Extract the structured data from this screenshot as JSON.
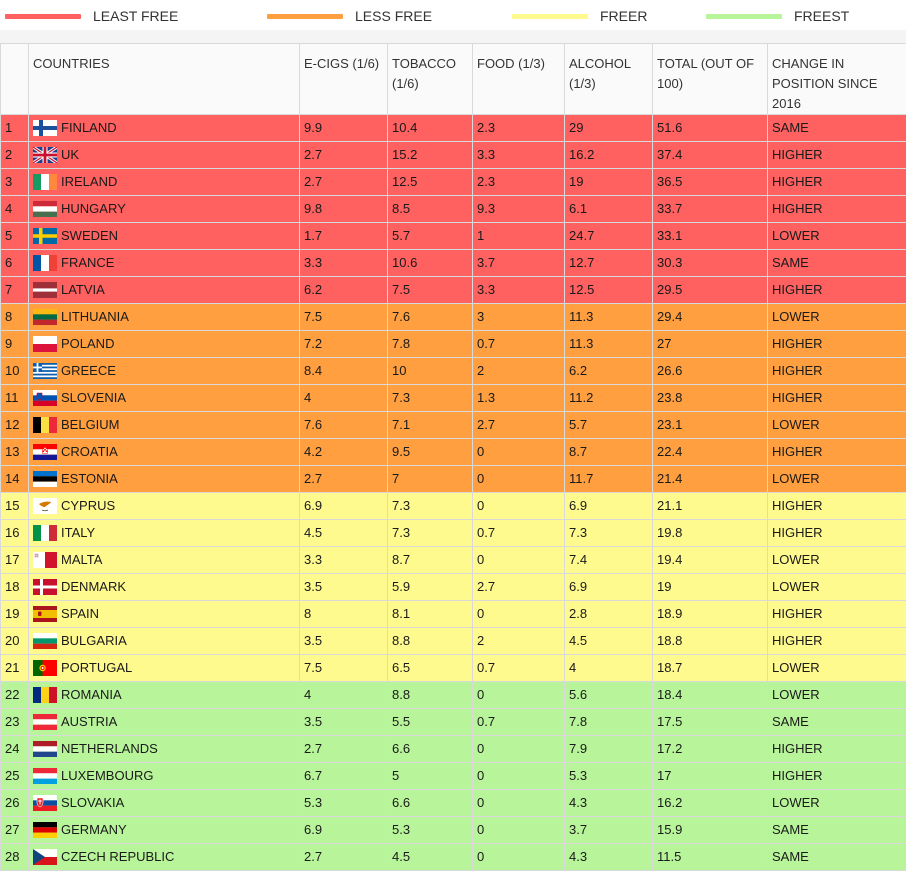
{
  "legend": [
    {
      "label": "LEAST FREE",
      "color": "#ff6060"
    },
    {
      "label": "LESS FREE",
      "color": "#ff9f3f"
    },
    {
      "label": "FREER",
      "color": "#fffa8e"
    },
    {
      "label": "FREEST",
      "color": "#b8f59a"
    }
  ],
  "chart_data": {
    "type": "table",
    "columns": [
      "",
      "COUNTRIES",
      "E-CIGS (1/6)",
      "TOBACCO (1/6)",
      "FOOD (1/3)",
      "ALCOHOL (1/3)",
      "TOTAL (OUT OF 100)",
      "CHANGE IN POSITION SINCE 2016"
    ],
    "rows": [
      {
        "rank": "1",
        "country": "FINLAND",
        "flag": "finland-flag-icon",
        "ecigs": "9.9",
        "tobacco": "10.4",
        "food": "2.3",
        "alcohol": "29",
        "total": "51.6",
        "change": "SAME",
        "group": 0
      },
      {
        "rank": "2",
        "country": "UK",
        "flag": "uk-flag-icon",
        "ecigs": "2.7",
        "tobacco": "15.2",
        "food": "3.3",
        "alcohol": "16.2",
        "total": "37.4",
        "change": "HIGHER",
        "group": 0
      },
      {
        "rank": "3",
        "country": "IRELAND",
        "flag": "ireland-flag-icon",
        "ecigs": "2.7",
        "tobacco": "12.5",
        "food": "2.3",
        "alcohol": "19",
        "total": "36.5",
        "change": "HIGHER",
        "group": 0
      },
      {
        "rank": "4",
        "country": "HUNGARY",
        "flag": "hungary-flag-icon",
        "ecigs": "9.8",
        "tobacco": "8.5",
        "food": "9.3",
        "alcohol": "6.1",
        "total": "33.7",
        "change": "HIGHER",
        "group": 0
      },
      {
        "rank": "5",
        "country": "SWEDEN",
        "flag": "sweden-flag-icon",
        "ecigs": "1.7",
        "tobacco": "5.7",
        "food": "1",
        "alcohol": "24.7",
        "total": "33.1",
        "change": "LOWER",
        "group": 0
      },
      {
        "rank": "6",
        "country": "FRANCE",
        "flag": "france-flag-icon",
        "ecigs": "3.3",
        "tobacco": "10.6",
        "food": "3.7",
        "alcohol": "12.7",
        "total": "30.3",
        "change": "SAME",
        "group": 0
      },
      {
        "rank": "7",
        "country": "LATVIA",
        "flag": "latvia-flag-icon",
        "ecigs": "6.2",
        "tobacco": "7.5",
        "food": "3.3",
        "alcohol": "12.5",
        "total": "29.5",
        "change": "HIGHER",
        "group": 0
      },
      {
        "rank": "8",
        "country": "LITHUANIA",
        "flag": "lithuania-flag-icon",
        "ecigs": "7.5",
        "tobacco": "7.6",
        "food": "3",
        "alcohol": "11.3",
        "total": "29.4",
        "change": "LOWER",
        "group": 1
      },
      {
        "rank": "9",
        "country": "POLAND",
        "flag": "poland-flag-icon",
        "ecigs": "7.2",
        "tobacco": "7.8",
        "food": "0.7",
        "alcohol": "11.3",
        "total": "27",
        "change": "HIGHER",
        "group": 1
      },
      {
        "rank": "10",
        "country": "GREECE",
        "flag": "greece-flag-icon",
        "ecigs": "8.4",
        "tobacco": "10",
        "food": "2",
        "alcohol": "6.2",
        "total": "26.6",
        "change": "HIGHER",
        "group": 1
      },
      {
        "rank": "11",
        "country": "SLOVENIA",
        "flag": "slovenia-flag-icon",
        "ecigs": "4",
        "tobacco": "7.3",
        "food": "1.3",
        "alcohol": "11.2",
        "total": "23.8",
        "change": "HIGHER",
        "group": 1
      },
      {
        "rank": "12",
        "country": "BELGIUM",
        "flag": "belgium-flag-icon",
        "ecigs": "7.6",
        "tobacco": "7.1",
        "food": "2.7",
        "alcohol": "5.7",
        "total": "23.1",
        "change": "LOWER",
        "group": 1
      },
      {
        "rank": "13",
        "country": "CROATIA",
        "flag": "croatia-flag-icon",
        "ecigs": "4.2",
        "tobacco": "9.5",
        "food": "0",
        "alcohol": "8.7",
        "total": "22.4",
        "change": "HIGHER",
        "group": 1
      },
      {
        "rank": "14",
        "country": "ESTONIA",
        "flag": "estonia-flag-icon",
        "ecigs": "2.7",
        "tobacco": "7",
        "food": "0",
        "alcohol": "11.7",
        "total": "21.4",
        "change": "LOWER",
        "group": 1
      },
      {
        "rank": "15",
        "country": "CYPRUS",
        "flag": "cyprus-flag-icon",
        "ecigs": "6.9",
        "tobacco": "7.3",
        "food": "0",
        "alcohol": "6.9",
        "total": "21.1",
        "change": "HIGHER",
        "group": 2
      },
      {
        "rank": "16",
        "country": "ITALY",
        "flag": "italy-flag-icon",
        "ecigs": "4.5",
        "tobacco": "7.3",
        "food": "0.7",
        "alcohol": "7.3",
        "total": "19.8",
        "change": "HIGHER",
        "group": 2
      },
      {
        "rank": "17",
        "country": "MALTA",
        "flag": "malta-flag-icon",
        "ecigs": "3.3",
        "tobacco": "8.7",
        "food": "0",
        "alcohol": "7.4",
        "total": "19.4",
        "change": "LOWER",
        "group": 2
      },
      {
        "rank": "18",
        "country": "DENMARK",
        "flag": "denmark-flag-icon",
        "ecigs": "3.5",
        "tobacco": "5.9",
        "food": "2.7",
        "alcohol": "6.9",
        "total": "19",
        "change": "LOWER",
        "group": 2
      },
      {
        "rank": "19",
        "country": "SPAIN",
        "flag": "spain-flag-icon",
        "ecigs": "8",
        "tobacco": "8.1",
        "food": "0",
        "alcohol": "2.8",
        "total": "18.9",
        "change": "HIGHER",
        "group": 2
      },
      {
        "rank": "20",
        "country": "BULGARIA",
        "flag": "bulgaria-flag-icon",
        "ecigs": "3.5",
        "tobacco": "8.8",
        "food": "2",
        "alcohol": "4.5",
        "total": "18.8",
        "change": "HIGHER",
        "group": 2
      },
      {
        "rank": "21",
        "country": "PORTUGAL",
        "flag": "portugal-flag-icon",
        "ecigs": "7.5",
        "tobacco": "6.5",
        "food": "0.7",
        "alcohol": "4",
        "total": "18.7",
        "change": "LOWER",
        "group": 2
      },
      {
        "rank": "22",
        "country": "ROMANIA",
        "flag": "romania-flag-icon",
        "ecigs": "4",
        "tobacco": "8.8",
        "food": "0",
        "alcohol": "5.6",
        "total": "18.4",
        "change": "LOWER",
        "group": 3
      },
      {
        "rank": "23",
        "country": "AUSTRIA",
        "flag": "austria-flag-icon",
        "ecigs": "3.5",
        "tobacco": "5.5",
        "food": "0.7",
        "alcohol": "7.8",
        "total": "17.5",
        "change": "SAME",
        "group": 3
      },
      {
        "rank": "24",
        "country": "NETHERLANDS",
        "flag": "netherlands-flag-icon",
        "ecigs": "2.7",
        "tobacco": "6.6",
        "food": "0",
        "alcohol": "7.9",
        "total": "17.2",
        "change": "HIGHER",
        "group": 3
      },
      {
        "rank": "25",
        "country": "LUXEMBOURG",
        "flag": "luxembourg-flag-icon",
        "ecigs": "6.7",
        "tobacco": "5",
        "food": "0",
        "alcohol": "5.3",
        "total": "17",
        "change": "HIGHER",
        "group": 3
      },
      {
        "rank": "26",
        "country": "SLOVAKIA",
        "flag": "slovakia-flag-icon",
        "ecigs": "5.3",
        "tobacco": "6.6",
        "food": "0",
        "alcohol": "4.3",
        "total": "16.2",
        "change": "LOWER",
        "group": 3
      },
      {
        "rank": "27",
        "country": "GERMANY",
        "flag": "germany-flag-icon",
        "ecigs": "6.9",
        "tobacco": "5.3",
        "food": "0",
        "alcohol": "3.7",
        "total": "15.9",
        "change": "SAME",
        "group": 3
      },
      {
        "rank": "28",
        "country": "CZECH REPUBLIC",
        "flag": "czech-republic-flag-icon",
        "ecigs": "2.7",
        "tobacco": "4.5",
        "food": "0",
        "alcohol": "4.3",
        "total": "11.5",
        "change": "SAME",
        "group": 3
      }
    ]
  }
}
